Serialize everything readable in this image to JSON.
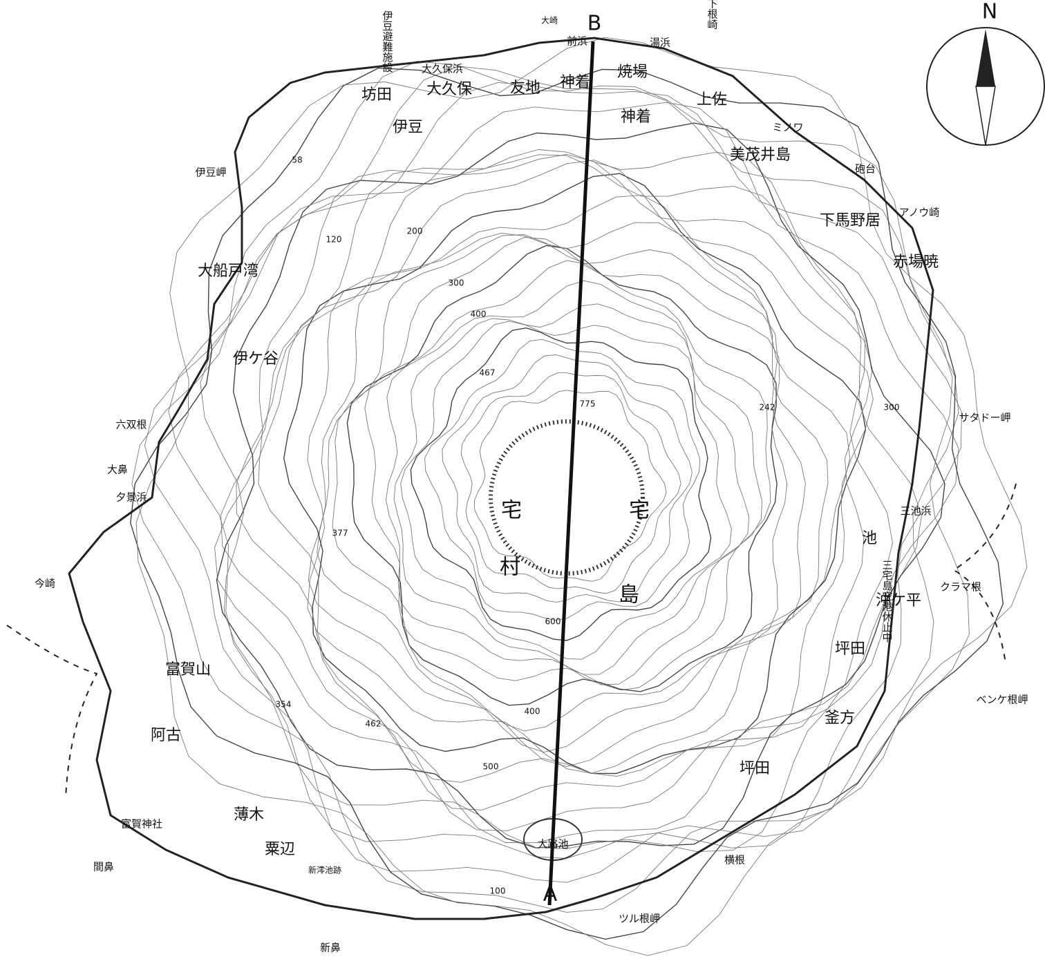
{
  "compass": {
    "label": "N"
  },
  "profile_line": {
    "start_label": "A",
    "end_label": "B"
  },
  "places": [
    "伊豆避難施設",
    "大崎",
    "前浜",
    "湯浜",
    "下根崎",
    "大久保浜",
    "坊田",
    "大久保",
    "友地",
    "神着",
    "焼場",
    "上佐",
    "伊豆",
    "神着",
    "美茂井島",
    "ミノワ",
    "砲台",
    "アノウ崎",
    "下馬野居",
    "赤場暁",
    "伊豆岬",
    "大船戸湾",
    "伊ケ谷",
    "サタドー岬",
    "六双根",
    "大鼻",
    "夕景浜",
    "今崎",
    "三池浜",
    "池",
    "クラマ根",
    "沖ケ平",
    "坪田",
    "三宅島空港休止中",
    "ベンケ根岬",
    "宅",
    "村",
    "島",
    "宅",
    "富賀山",
    "阿古",
    "薄木",
    "粟辺",
    "富賀神社",
    "間鼻",
    "新澪池跡",
    "新鼻",
    "ツル根岬",
    "大路池",
    "坪田",
    "釜方",
    "横根"
  ],
  "contour_labels": [
    "58",
    "120",
    "200",
    "300",
    "400",
    "467",
    "377",
    "354",
    "462",
    "775",
    "600",
    "400",
    "500",
    "100",
    "242",
    "300"
  ]
}
